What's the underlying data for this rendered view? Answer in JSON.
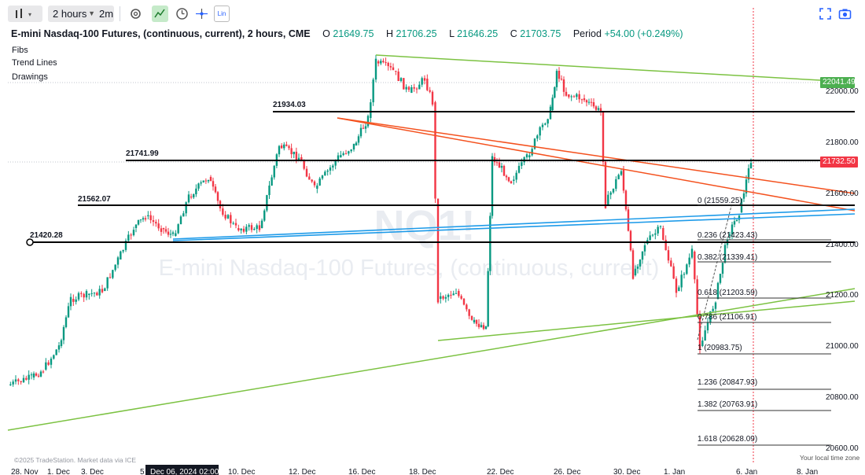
{
  "toolbar": {
    "interval": "2 hours",
    "interval2": "2m",
    "scale_mode": "Lin",
    "icons": [
      "bars-icon",
      "settings-gear-icon",
      "drawing-tool-icon",
      "clock-icon",
      "crosshair-tool-icon",
      "fullscreen-icon",
      "camera-icon"
    ]
  },
  "header": {
    "title": "E-mini Nasdaq-100 Futures, (continuous, current), 2 hours, CME",
    "o_label": "O",
    "o_value": "21649.75",
    "h_label": "H",
    "h_value": "21706.25",
    "l_label": "L",
    "l_value": "21646.25",
    "c_label": "C",
    "c_value": "21703.75",
    "period_label": "Period",
    "period_change": "+54.00 (+0.249%)"
  },
  "legend": [
    "Fibs",
    "Trend Lines",
    "Drawings"
  ],
  "watermark": {
    "symbol": "NQ1!",
    "description": "E-mini Nasdaq-100 Futures, (continuous, current)"
  },
  "price_axis": [
    "22000.00",
    "21800.00",
    "21600.00",
    "21400.00",
    "21200.00",
    "21000.00",
    "20800.00",
    "20600.00"
  ],
  "price_tags": {
    "top_green": "22041.49",
    "current_red": "21732.50"
  },
  "horizontal_levels": [
    {
      "label": "21934.03"
    },
    {
      "label": "21741.99"
    },
    {
      "label": "21562.07"
    },
    {
      "label": "21420.28"
    }
  ],
  "fib_levels": [
    {
      "label": "0 (21559.25)"
    },
    {
      "label": "0.236 (21423.43)"
    },
    {
      "label": "0.382 (21339.41)"
    },
    {
      "label": "0.618 (21203.59)"
    },
    {
      "label": "0.786 (21106.91)"
    },
    {
      "label": "1 (20983.75)"
    },
    {
      "label": "1.236 (20847.93)"
    },
    {
      "label": "1.382 (20763.91)"
    },
    {
      "label": "1.618 (20628.09)"
    }
  ],
  "time_axis": [
    "28. Nov",
    "1. Dec",
    "3. Dec",
    "5",
    "10. Dec",
    "12. Dec",
    "16. Dec",
    "18. Dec",
    "22. Dec",
    "26. Dec",
    "30. Dec",
    "1. Jan",
    "6. Jan",
    "8. Jan"
  ],
  "time_cursor_label": "Dec 06, 2024 02:00",
  "footer": {
    "attribution": "©2025 TradeStation. Market data via ICE",
    "timezone": "Your local time zone"
  },
  "colors": {
    "up": "#089981",
    "down": "#f23645",
    "level_line": "#000000",
    "trend_green": "#7cc242",
    "trend_orange": "#f4511e",
    "trend_blue": "#1e9be9",
    "tag_green": "#4caf50"
  }
}
